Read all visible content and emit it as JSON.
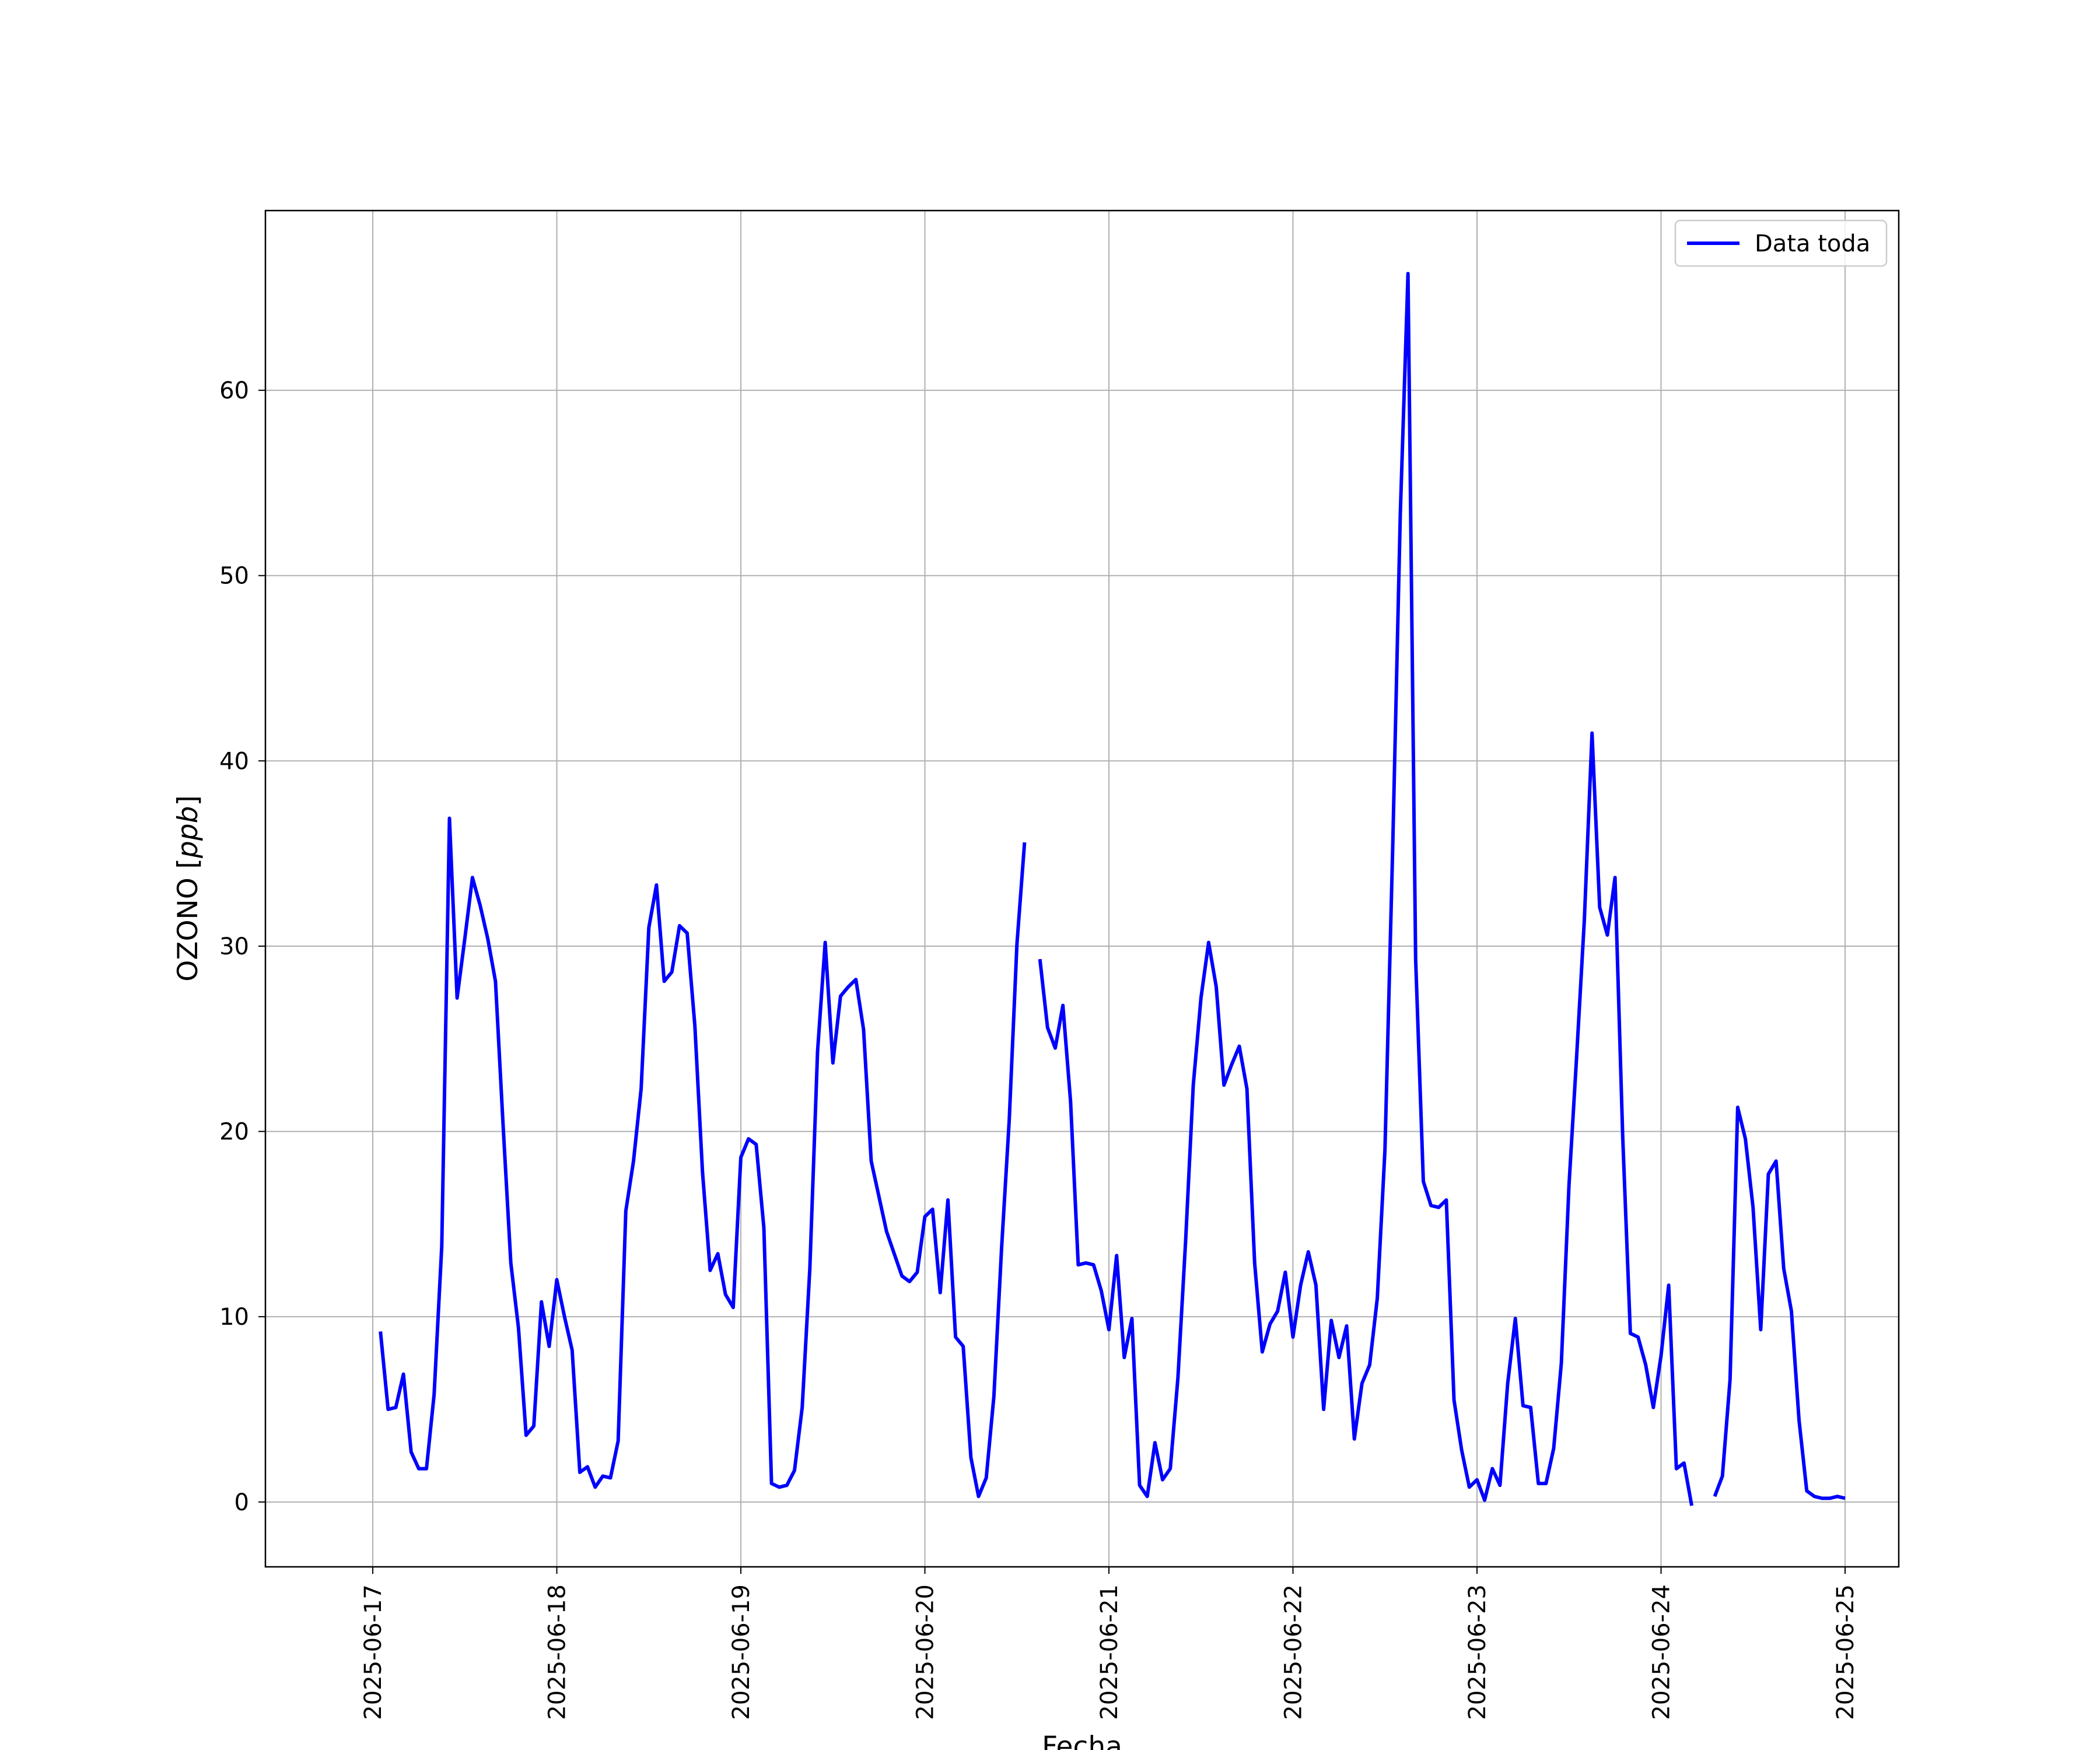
{
  "chart_data": {
    "type": "line",
    "title": "",
    "xlabel": "Fecha",
    "ylabel": "OZONO [ppb]",
    "ylabel_prefix": "OZONO [",
    "ylabel_unit": "ppb",
    "ylabel_suffix": "]",
    "x_type": "datetime",
    "xlim": [
      "2025-06-16 10:00",
      "2025-06-25 07:00"
    ],
    "ylim": [
      -3.5,
      69.7
    ],
    "x_ticks": [
      "2025-06-17",
      "2025-06-18",
      "2025-06-19",
      "2025-06-20",
      "2025-06-21",
      "2025-06-22",
      "2025-06-23",
      "2025-06-24",
      "2025-06-25"
    ],
    "y_ticks": [
      0,
      10,
      20,
      30,
      40,
      50,
      60
    ],
    "grid": true,
    "legend_position": "top-right",
    "series": [
      {
        "name": "Data toda",
        "color": "#0000ff",
        "points": [
          [
            "2025-06-17 01:00",
            9.2
          ],
          [
            "2025-06-17 02:00",
            5.0
          ],
          [
            "2025-06-17 03:00",
            5.1
          ],
          [
            "2025-06-17 04:00",
            6.9
          ],
          [
            "2025-06-17 05:00",
            2.7
          ],
          [
            "2025-06-17 06:00",
            1.8
          ],
          [
            "2025-06-17 07:00",
            1.8
          ],
          [
            "2025-06-17 08:00",
            5.8
          ],
          [
            "2025-06-17 09:00",
            13.8
          ],
          [
            "2025-06-17 10:00",
            36.9
          ],
          [
            "2025-06-17 11:00",
            27.2
          ],
          [
            "2025-06-17 12:00",
            30.4
          ],
          [
            "2025-06-17 13:00",
            33.7
          ],
          [
            "2025-06-17 14:00",
            32.2
          ],
          [
            "2025-06-17 15:00",
            30.4
          ],
          [
            "2025-06-17 16:00",
            28.1
          ],
          [
            "2025-06-17 17:00",
            20.3
          ],
          [
            "2025-06-17 18:00",
            12.9
          ],
          [
            "2025-06-17 19:00",
            9.4
          ],
          [
            "2025-06-17 20:00",
            3.6
          ],
          [
            "2025-06-17 21:00",
            4.1
          ],
          [
            "2025-06-17 22:00",
            10.8
          ],
          [
            "2025-06-17 23:00",
            8.4
          ],
          [
            "2025-06-18 00:00",
            12.0
          ],
          [
            "2025-06-18 01:00",
            10.0
          ],
          [
            "2025-06-18 02:00",
            8.2
          ],
          [
            "2025-06-18 03:00",
            1.6
          ],
          [
            "2025-06-18 04:00",
            1.9
          ],
          [
            "2025-06-18 05:00",
            0.8
          ],
          [
            "2025-06-18 06:00",
            1.4
          ],
          [
            "2025-06-18 07:00",
            1.3
          ],
          [
            "2025-06-18 08:00",
            3.3
          ],
          [
            "2025-06-18 09:00",
            15.7
          ],
          [
            "2025-06-18 10:00",
            18.4
          ],
          [
            "2025-06-18 11:00",
            22.3
          ],
          [
            "2025-06-18 12:00",
            31.0
          ],
          [
            "2025-06-18 13:00",
            33.3
          ],
          [
            "2025-06-18 14:00",
            28.1
          ],
          [
            "2025-06-18 15:00",
            28.6
          ],
          [
            "2025-06-18 16:00",
            31.1
          ],
          [
            "2025-06-18 17:00",
            30.7
          ],
          [
            "2025-06-18 18:00",
            25.7
          ],
          [
            "2025-06-18 19:00",
            17.8
          ],
          [
            "2025-06-18 20:00",
            12.5
          ],
          [
            "2025-06-18 21:00",
            13.4
          ],
          [
            "2025-06-18 22:00",
            11.2
          ],
          [
            "2025-06-18 23:00",
            10.5
          ],
          [
            "2025-06-19 00:00",
            18.6
          ],
          [
            "2025-06-19 01:00",
            19.6
          ],
          [
            "2025-06-19 02:00",
            19.3
          ],
          [
            "2025-06-19 03:00",
            14.8
          ],
          [
            "2025-06-19 04:00",
            1.0
          ],
          [
            "2025-06-19 05:00",
            0.8
          ],
          [
            "2025-06-19 06:00",
            0.9
          ],
          [
            "2025-06-19 07:00",
            1.7
          ],
          [
            "2025-06-19 08:00",
            5.1
          ],
          [
            "2025-06-19 09:00",
            12.6
          ],
          [
            "2025-06-19 10:00",
            24.3
          ],
          [
            "2025-06-19 11:00",
            30.2
          ],
          [
            "2025-06-19 12:00",
            23.7
          ],
          [
            "2025-06-19 13:00",
            27.3
          ],
          [
            "2025-06-19 14:00",
            27.8
          ],
          [
            "2025-06-19 15:00",
            28.2
          ],
          [
            "2025-06-19 16:00",
            25.5
          ],
          [
            "2025-06-19 17:00",
            18.4
          ],
          [
            "2025-06-19 19:00",
            14.6
          ],
          [
            "2025-06-19 21:00",
            12.2
          ],
          [
            "2025-06-19 22:00",
            11.9
          ],
          [
            "2025-06-19 23:00",
            12.4
          ],
          [
            "2025-06-20 00:00",
            15.4
          ],
          [
            "2025-06-20 01:00",
            15.8
          ],
          [
            "2025-06-20 02:00",
            11.3
          ],
          [
            "2025-06-20 03:00",
            16.3
          ],
          [
            "2025-06-20 04:00",
            8.9
          ],
          [
            "2025-06-20 05:00",
            8.4
          ],
          [
            "2025-06-20 06:00",
            2.4
          ],
          [
            "2025-06-20 07:00",
            0.3
          ],
          [
            "2025-06-20 08:00",
            1.3
          ],
          [
            "2025-06-20 09:00",
            5.7
          ],
          [
            "2025-06-20 10:00",
            13.7
          ],
          [
            "2025-06-20 11:00",
            20.6
          ],
          [
            "2025-06-20 12:00",
            30.1
          ],
          [
            "2025-06-20 13:00",
            35.6
          ],
          null,
          [
            "2025-06-20 15:00",
            29.3
          ],
          [
            "2025-06-20 16:00",
            25.6
          ],
          [
            "2025-06-20 17:00",
            24.5
          ],
          [
            "2025-06-20 18:00",
            26.8
          ],
          [
            "2025-06-20 19:00",
            21.6
          ],
          [
            "2025-06-20 20:00",
            12.8
          ],
          [
            "2025-06-20 21:00",
            12.9
          ],
          [
            "2025-06-20 22:00",
            12.8
          ],
          [
            "2025-06-20 23:00",
            11.4
          ],
          [
            "2025-06-21 00:00",
            9.3
          ],
          [
            "2025-06-21 01:00",
            13.3
          ],
          [
            "2025-06-21 02:00",
            7.8
          ],
          [
            "2025-06-21 03:00",
            9.9
          ],
          [
            "2025-06-21 04:00",
            0.9
          ],
          [
            "2025-06-21 05:00",
            0.3
          ],
          [
            "2025-06-21 06:00",
            3.2
          ],
          [
            "2025-06-21 07:00",
            1.2
          ],
          [
            "2025-06-21 08:00",
            1.8
          ],
          [
            "2025-06-21 09:00",
            6.7
          ],
          [
            "2025-06-21 10:00",
            14.1
          ],
          [
            "2025-06-21 11:00",
            22.5
          ],
          [
            "2025-06-21 12:00",
            27.2
          ],
          [
            "2025-06-21 13:00",
            30.2
          ],
          [
            "2025-06-21 14:00",
            27.8
          ],
          [
            "2025-06-21 15:00",
            22.5
          ],
          [
            "2025-06-21 16:00",
            23.6
          ],
          [
            "2025-06-21 17:00",
            24.6
          ],
          [
            "2025-06-21 18:00",
            22.3
          ],
          [
            "2025-06-21 19:00",
            12.9
          ],
          [
            "2025-06-21 20:00",
            8.1
          ],
          [
            "2025-06-21 21:00",
            9.6
          ],
          [
            "2025-06-21 22:00",
            10.3
          ],
          [
            "2025-06-21 23:00",
            12.4
          ],
          [
            "2025-06-22 00:00",
            8.9
          ],
          [
            "2025-06-22 01:00",
            11.7
          ],
          [
            "2025-06-22 02:00",
            13.5
          ],
          [
            "2025-06-22 03:00",
            11.7
          ],
          [
            "2025-06-22 04:00",
            5.0
          ],
          [
            "2025-06-22 05:00",
            9.8
          ],
          [
            "2025-06-22 06:00",
            7.8
          ],
          [
            "2025-06-22 07:00",
            9.5
          ],
          [
            "2025-06-22 08:00",
            3.4
          ],
          [
            "2025-06-22 09:00",
            6.4
          ],
          [
            "2025-06-22 10:00",
            7.4
          ],
          [
            "2025-06-22 11:00",
            11.0
          ],
          [
            "2025-06-22 12:00",
            19.0
          ],
          [
            "2025-06-22 13:00",
            35.2
          ],
          [
            "2025-06-22 14:00",
            53.3
          ],
          [
            "2025-06-22 15:00",
            66.3
          ],
          [
            "2025-06-22 16:00",
            29.3
          ],
          [
            "2025-06-22 17:00",
            17.3
          ],
          [
            "2025-06-22 18:00",
            16.0
          ],
          [
            "2025-06-22 19:00",
            15.9
          ],
          [
            "2025-06-22 20:00",
            16.3
          ],
          [
            "2025-06-22 21:00",
            5.5
          ],
          [
            "2025-06-22 22:00",
            2.8
          ],
          [
            "2025-06-22 23:00",
            0.8
          ],
          [
            "2025-06-23 00:00",
            1.2
          ],
          [
            "2025-06-23 01:00",
            0.1
          ],
          [
            "2025-06-23 02:00",
            1.8
          ],
          [
            "2025-06-23 03:00",
            0.9
          ],
          [
            "2025-06-23 04:00",
            6.4
          ],
          [
            "2025-06-23 05:00",
            9.9
          ],
          [
            "2025-06-23 06:00",
            5.2
          ],
          [
            "2025-06-23 07:00",
            5.1
          ],
          [
            "2025-06-23 08:00",
            1.0
          ],
          [
            "2025-06-23 09:00",
            1.0
          ],
          [
            "2025-06-23 10:00",
            2.9
          ],
          [
            "2025-06-23 11:00",
            7.5
          ],
          [
            "2025-06-23 12:00",
            17.1
          ],
          [
            "2025-06-23 13:00",
            24.1
          ],
          [
            "2025-06-23 14:00",
            31.4
          ],
          [
            "2025-06-23 15:00",
            41.5
          ],
          [
            "2025-06-23 16:00",
            32.1
          ],
          [
            "2025-06-23 17:00",
            30.6
          ],
          [
            "2025-06-23 18:00",
            33.7
          ],
          [
            "2025-06-23 19:00",
            19.7
          ],
          [
            "2025-06-23 20:00",
            9.1
          ],
          [
            "2025-06-23 21:00",
            8.9
          ],
          [
            "2025-06-23 22:00",
            7.4
          ],
          [
            "2025-06-23 23:00",
            5.1
          ],
          [
            "2025-06-24 00:00",
            7.9
          ],
          [
            "2025-06-24 01:00",
            11.7
          ],
          [
            "2025-06-24 02:00",
            1.8
          ],
          [
            "2025-06-24 03:00",
            2.1
          ],
          [
            "2025-06-24 04:00",
            -0.2
          ],
          null,
          [
            "2025-06-24 07:00",
            0.3
          ],
          [
            "2025-06-24 08:00",
            1.4
          ],
          [
            "2025-06-24 09:00",
            6.6
          ],
          [
            "2025-06-24 10:00",
            21.3
          ],
          [
            "2025-06-24 11:00",
            19.6
          ],
          [
            "2025-06-24 12:00",
            15.9
          ],
          [
            "2025-06-24 13:00",
            9.3
          ],
          [
            "2025-06-24 14:00",
            17.7
          ],
          [
            "2025-06-24 15:00",
            18.4
          ],
          [
            "2025-06-24 16:00",
            12.6
          ],
          [
            "2025-06-24 17:00",
            10.3
          ],
          [
            "2025-06-24 18:00",
            4.4
          ],
          [
            "2025-06-24 19:00",
            0.6
          ],
          [
            "2025-06-24 20:00",
            0.3
          ],
          [
            "2025-06-24 21:00",
            0.2
          ],
          [
            "2025-06-24 22:00",
            0.2
          ],
          [
            "2025-06-24 23:00",
            0.3
          ],
          [
            "2025-06-25 00:00",
            0.2
          ]
        ]
      }
    ]
  }
}
